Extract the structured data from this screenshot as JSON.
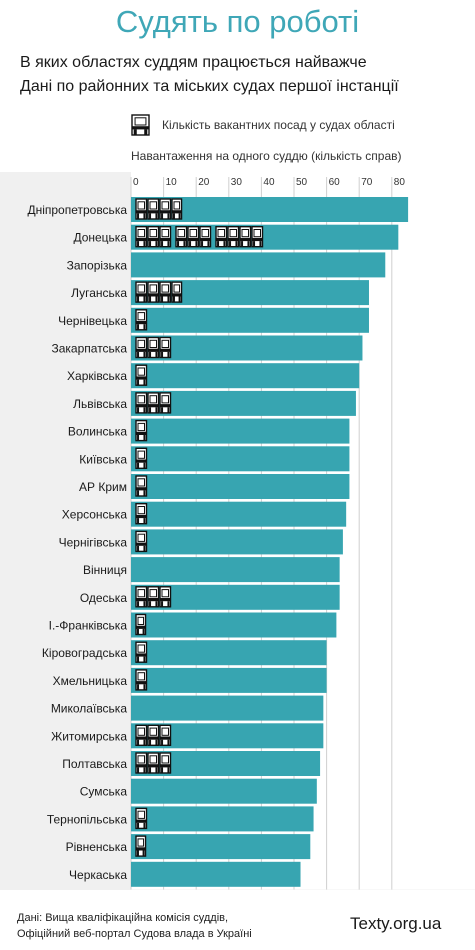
{
  "page": {
    "title": "Судять по роботі",
    "subtitle1": "В яких областях суддям працюється найважче",
    "subtitle2": "Дані по районних та міських судах першої інстанції",
    "source_line1": "Дані: Вища кваліфікаційна комісія суддів,",
    "source_line2": "Офіційний веб-портал Судова влада в Україні",
    "site": "Texty.org.ua"
  },
  "chart_data": {
    "type": "bar",
    "orientation": "horizontal",
    "xlabel": "Навантаження на одного суддю (кількість справ)",
    "xlim": [
      0,
      85
    ],
    "xticks": [
      0,
      10,
      20,
      30,
      40,
      50,
      60,
      70,
      80
    ],
    "grid": true,
    "legend": {
      "icon": "chair-icon",
      "label": "Кількість вакантних посад у судах області",
      "placement": "top"
    },
    "bar_color": "#37a5b1",
    "categories": [
      "Дніпропетровська",
      "Донецька",
      "Запорізька",
      "Луганська",
      "Чернівецька",
      "Закарпатська",
      "Харківська",
      "Львівська",
      "Волинська",
      "Київська",
      "АР Крим",
      "Херсонська",
      "Чернігівська",
      "Вінниця",
      "Одеська",
      "І.-Франківська",
      "Кіровоградська",
      "Хмельницька",
      "Миколаївська",
      "Житомирська",
      "Полтавська",
      "Сумська",
      "Тернопільська",
      "Рівненська",
      "Черкаська"
    ],
    "series": [
      {
        "values": [
          85,
          82,
          78,
          73,
          73,
          71,
          70,
          69,
          67,
          67,
          67,
          66,
          65,
          64,
          64,
          63,
          60,
          60,
          59,
          59,
          58,
          57,
          56,
          55,
          52
        ]
      }
    ],
    "vacancies": [
      13,
      35,
      0,
      13,
      7,
      10,
      4,
      10,
      7,
      7,
      7,
      4,
      4,
      0,
      10,
      3,
      4,
      4,
      0,
      10,
      10,
      0,
      7,
      3,
      0
    ]
  }
}
